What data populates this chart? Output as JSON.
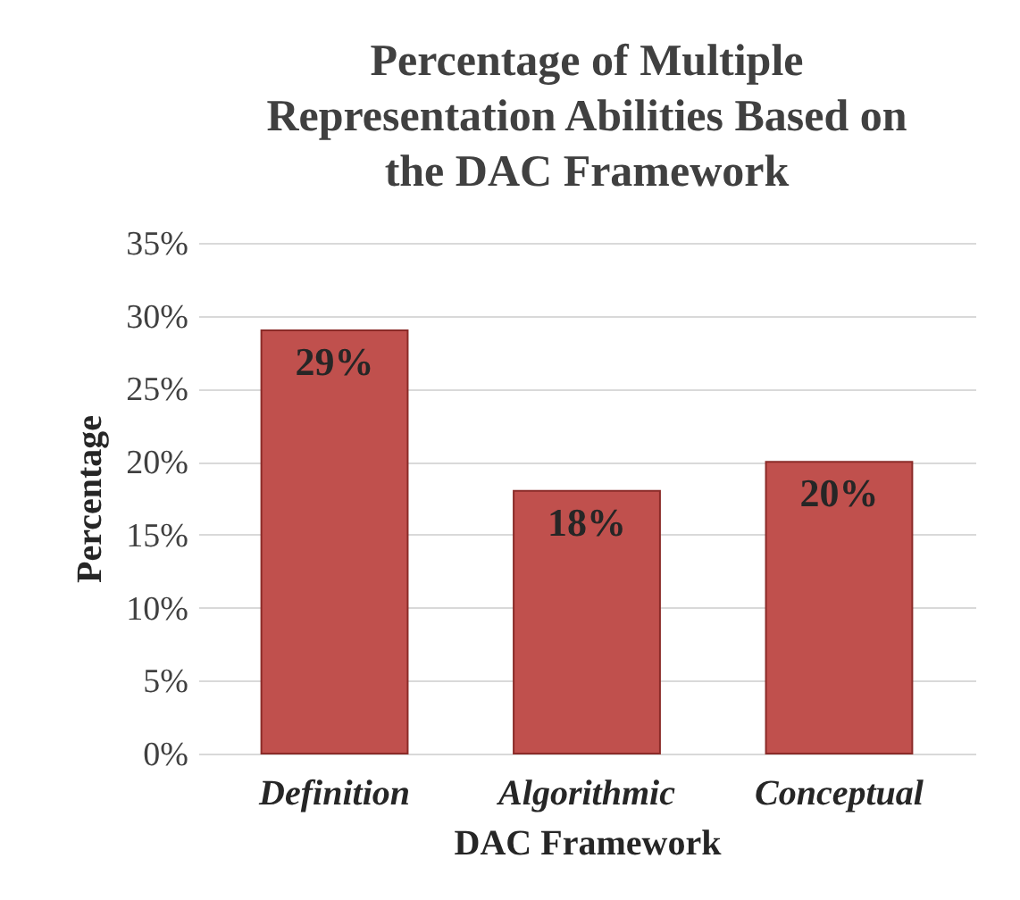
{
  "chart_data": {
    "type": "bar",
    "title": [
      "Percentage of Multiple",
      "Representation Abilities Based on",
      "the DAC Framework"
    ],
    "xlabel": "DAC Framework",
    "ylabel": "Percentage",
    "categories": [
      "Definition",
      "Algorithmic",
      "Conceptual"
    ],
    "values": [
      29,
      18,
      20
    ],
    "value_labels": [
      "29%",
      "18%",
      "20%"
    ],
    "color": "#c0504d",
    "ylim": [
      0,
      35
    ],
    "yticks": [
      {
        "value": 0,
        "label": "0%"
      },
      {
        "value": 5,
        "label": "5%"
      },
      {
        "value": 10,
        "label": "10%"
      },
      {
        "value": 15,
        "label": "15%"
      },
      {
        "value": 20,
        "label": "20%"
      },
      {
        "value": 25,
        "label": "25%"
      },
      {
        "value": 30,
        "label": "30%"
      },
      {
        "value": 35,
        "label": "35%"
      }
    ],
    "grid": "y"
  }
}
